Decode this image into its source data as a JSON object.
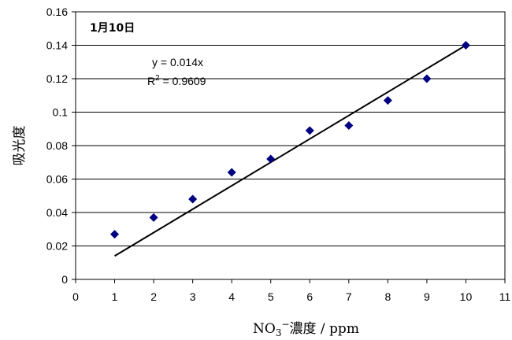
{
  "chart_data": {
    "type": "scatter",
    "title": "1月10日",
    "xlabel_main": "NO",
    "xlabel_sub": "3",
    "xlabel_sup": "−",
    "xlabel_rest": "濃度 / ppm",
    "ylabel": "吸光度",
    "xlim": [
      0,
      11
    ],
    "ylim": [
      0,
      0.16
    ],
    "x_ticks": [
      0,
      1,
      2,
      3,
      4,
      5,
      6,
      7,
      8,
      9,
      10,
      11
    ],
    "y_ticks": [
      0,
      0.02,
      0.04,
      0.06,
      0.08,
      0.1,
      0.12,
      0.14,
      0.16
    ],
    "y_tick_labels": [
      "0",
      "0.02",
      "0.04",
      "0.06",
      "0.08",
      "0.1",
      "0.12",
      "0.14",
      "0.16"
    ],
    "grid": "horizontal",
    "marker_color": "#000080",
    "series": [
      {
        "x": [
          1,
          2,
          3,
          4,
          5,
          6,
          7,
          8,
          9,
          10
        ],
        "y": [
          0.027,
          0.037,
          0.048,
          0.064,
          0.072,
          0.089,
          0.092,
          0.107,
          0.12,
          0.14
        ]
      }
    ],
    "trendline": {
      "slope": 0.014,
      "x_range": [
        1,
        10
      ],
      "equation": "y = 0.014x",
      "r2_prefix": "R",
      "r2_exp": "2",
      "r2_value": " = 0.9609"
    }
  }
}
